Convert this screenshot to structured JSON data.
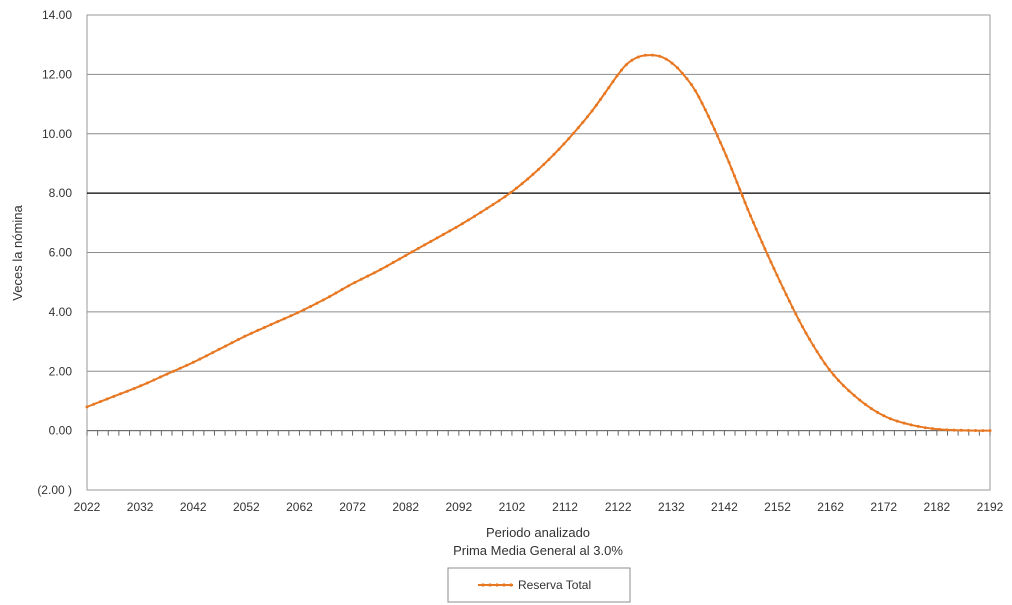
{
  "chart_data": {
    "type": "line",
    "xlabel": "Periodo analizado",
    "subtitle": "Prima Media General al 3.0%",
    "ylabel": "Veces la nómina",
    "xlim": [
      2022,
      2192
    ],
    "ylim": [
      -2,
      14
    ],
    "x_ticks": [
      2022,
      2032,
      2042,
      2052,
      2062,
      2072,
      2082,
      2092,
      2102,
      2112,
      2122,
      2132,
      2142,
      2152,
      2162,
      2172,
      2182,
      2192
    ],
    "y_ticks": [
      {
        "value": 14,
        "label": "14.00"
      },
      {
        "value": 12,
        "label": "12.00"
      },
      {
        "value": 10,
        "label": "10.00"
      },
      {
        "value": 8,
        "label": "8.00"
      },
      {
        "value": 6,
        "label": "6.00"
      },
      {
        "value": 4,
        "label": "4.00"
      },
      {
        "value": 2,
        "label": "2.00"
      },
      {
        "value": 0,
        "label": "0.00"
      },
      {
        "value": -2,
        "label": "(2.00 )"
      }
    ],
    "grid": true,
    "legend_position": "bottom-center",
    "colors": {
      "series": "#E87722",
      "negative_label": "#C0282D",
      "grid": "#8c8c8c",
      "major_grid": "#000000"
    },
    "series": [
      {
        "name": "Reserva Total",
        "x": [
          2022,
          2027,
          2032,
          2037,
          2042,
          2047,
          2052,
          2057,
          2062,
          2067,
          2072,
          2077,
          2082,
          2087,
          2092,
          2097,
          2102,
          2107,
          2112,
          2117,
          2122,
          2124,
          2126,
          2128,
          2130,
          2132,
          2134,
          2137,
          2142,
          2147,
          2152,
          2157,
          2162,
          2167,
          2172,
          2177,
          2182,
          2187,
          2192
        ],
        "values": [
          0.8,
          1.15,
          1.5,
          1.9,
          2.3,
          2.75,
          3.2,
          3.6,
          4.0,
          4.45,
          4.95,
          5.4,
          5.9,
          6.4,
          6.9,
          7.45,
          8.05,
          8.8,
          9.7,
          10.75,
          12.0,
          12.4,
          12.6,
          12.65,
          12.6,
          12.4,
          12.05,
          11.3,
          9.4,
          7.2,
          5.2,
          3.4,
          2.0,
          1.1,
          0.5,
          0.2,
          0.05,
          0.01,
          0.0
        ]
      }
    ]
  }
}
